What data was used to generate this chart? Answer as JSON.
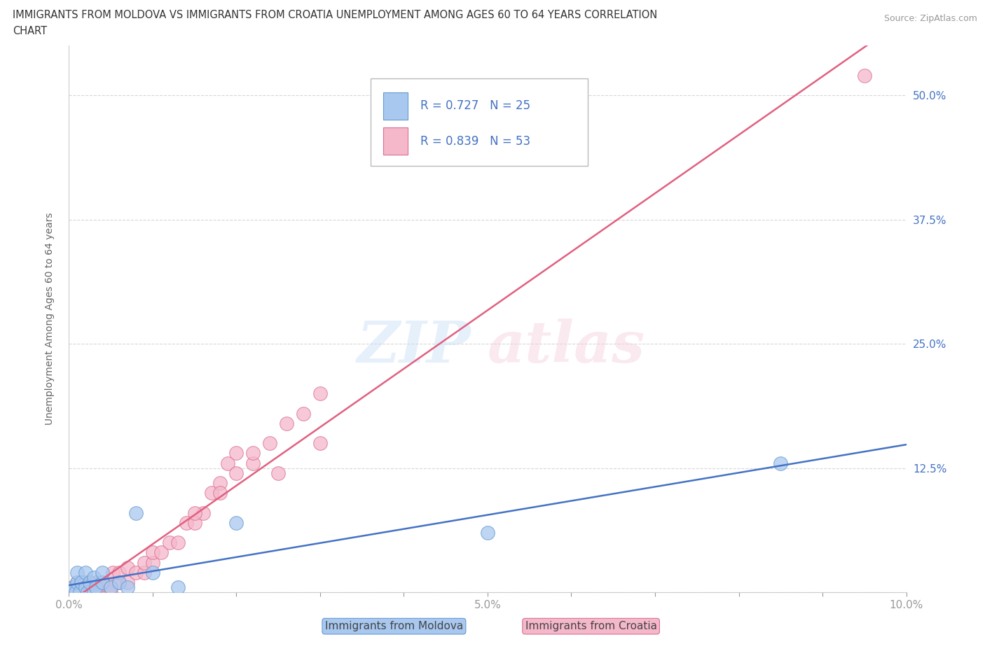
{
  "title_line1": "IMMIGRANTS FROM MOLDOVA VS IMMIGRANTS FROM CROATIA UNEMPLOYMENT AMONG AGES 60 TO 64 YEARS CORRELATION",
  "title_line2": "CHART",
  "source_text": "Source: ZipAtlas.com",
  "ylabel": "Unemployment Among Ages 60 to 64 years",
  "xlim": [
    0.0,
    0.1
  ],
  "ylim": [
    0.0,
    0.55
  ],
  "xticks": [
    0.0,
    0.01,
    0.02,
    0.03,
    0.04,
    0.05,
    0.06,
    0.07,
    0.08,
    0.09,
    0.1
  ],
  "xticklabels": [
    "0.0%",
    "",
    "",
    "",
    "",
    "5.0%",
    "",
    "",
    "",
    "",
    "10.0%"
  ],
  "yticks": [
    0.0,
    0.125,
    0.25,
    0.375,
    0.5
  ],
  "yticklabels": [
    "",
    "12.5%",
    "25.0%",
    "37.5%",
    "50.0%"
  ],
  "moldova_color": "#a8c8f0",
  "moldova_edge": "#6699cc",
  "croatia_color": "#f5b8cb",
  "croatia_edge": "#d97090",
  "regression_moldova_color": "#4472c4",
  "regression_croatia_color": "#e06080",
  "moldova_R": 0.727,
  "moldova_N": 25,
  "croatia_R": 0.839,
  "croatia_N": 53,
  "legend_text_color": "#4472c4",
  "moldova_x": [
    0.0003,
    0.0005,
    0.0008,
    0.001,
    0.001,
    0.0013,
    0.0015,
    0.002,
    0.002,
    0.0022,
    0.0025,
    0.003,
    0.003,
    0.0032,
    0.004,
    0.004,
    0.005,
    0.006,
    0.007,
    0.008,
    0.01,
    0.013,
    0.02,
    0.05,
    0.085
  ],
  "moldova_y": [
    0.0,
    0.005,
    0.0,
    0.01,
    0.02,
    0.0,
    0.01,
    0.005,
    0.02,
    0.0,
    0.01,
    0.0,
    0.015,
    0.005,
    0.01,
    0.02,
    0.005,
    0.01,
    0.005,
    0.08,
    0.02,
    0.005,
    0.07,
    0.06,
    0.13
  ],
  "croatia_x": [
    0.0003,
    0.0005,
    0.0007,
    0.001,
    0.001,
    0.0012,
    0.0015,
    0.0017,
    0.002,
    0.002,
    0.0022,
    0.0025,
    0.003,
    0.003,
    0.0032,
    0.0035,
    0.004,
    0.004,
    0.0042,
    0.005,
    0.005,
    0.0052,
    0.006,
    0.006,
    0.007,
    0.007,
    0.008,
    0.009,
    0.009,
    0.01,
    0.01,
    0.011,
    0.012,
    0.013,
    0.014,
    0.015,
    0.016,
    0.017,
    0.018,
    0.019,
    0.02,
    0.022,
    0.024,
    0.026,
    0.028,
    0.03,
    0.022,
    0.015,
    0.018,
    0.02,
    0.025,
    0.03,
    0.095
  ],
  "croatia_y": [
    0.0,
    0.005,
    0.0,
    0.0,
    0.01,
    0.005,
    0.0,
    0.01,
    0.0,
    0.01,
    0.005,
    0.0,
    0.0,
    0.008,
    0.01,
    0.005,
    0.0,
    0.01,
    0.008,
    0.0,
    0.005,
    0.02,
    0.01,
    0.02,
    0.01,
    0.025,
    0.02,
    0.02,
    0.03,
    0.03,
    0.04,
    0.04,
    0.05,
    0.05,
    0.07,
    0.07,
    0.08,
    0.1,
    0.11,
    0.13,
    0.14,
    0.13,
    0.15,
    0.17,
    0.18,
    0.2,
    0.14,
    0.08,
    0.1,
    0.12,
    0.12,
    0.15,
    0.52
  ],
  "marker_size": 200,
  "background_color": "#ffffff",
  "grid_color": "#cccccc",
  "title_color": "#333333",
  "axis_label_color": "#4472c4",
  "ylabel_color": "#666666"
}
